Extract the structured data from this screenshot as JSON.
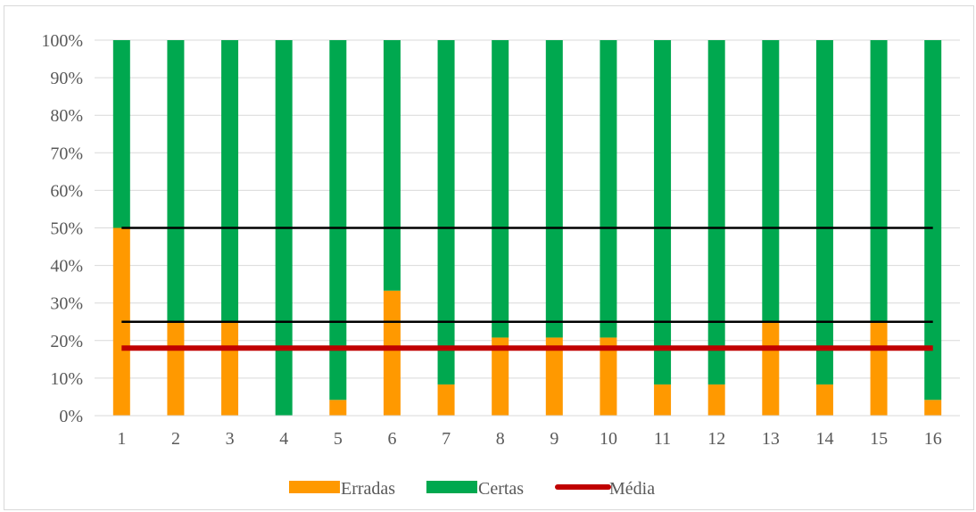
{
  "chart_data": {
    "type": "bar",
    "stacked": true,
    "percent": true,
    "categories": [
      "1",
      "2",
      "3",
      "4",
      "5",
      "6",
      "7",
      "8",
      "9",
      "10",
      "11",
      "12",
      "13",
      "14",
      "15",
      "16"
    ],
    "series": [
      {
        "name": "Erradas",
        "color": "#ff9900",
        "values": [
          50,
          25,
          25,
          0,
          4.2,
          33.3,
          8.3,
          20.8,
          20.8,
          20.8,
          8.3,
          8.3,
          25,
          8.3,
          25,
          4.2
        ]
      },
      {
        "name": "Certas",
        "color": "#00a84f",
        "values": [
          50,
          75,
          75,
          100,
          95.8,
          66.7,
          91.7,
          79.2,
          79.2,
          79.2,
          91.7,
          91.7,
          75,
          91.7,
          75,
          95.8
        ]
      }
    ],
    "lines": [
      {
        "name": "Média",
        "value": 18,
        "color": "#c00000",
        "in_legend": true
      },
      {
        "name": "",
        "value": 50,
        "color": "#000000",
        "in_legend": false
      },
      {
        "name": "",
        "value": 25,
        "color": "#000000",
        "in_legend": false
      }
    ],
    "yticks": [
      "0%",
      "10%",
      "20%",
      "30%",
      "40%",
      "50%",
      "60%",
      "70%",
      "80%",
      "90%",
      "100%"
    ],
    "ylim": [
      0,
      100
    ],
    "grid": true,
    "legend": "bottom",
    "title": "",
    "xlabel": "",
    "ylabel": ""
  }
}
